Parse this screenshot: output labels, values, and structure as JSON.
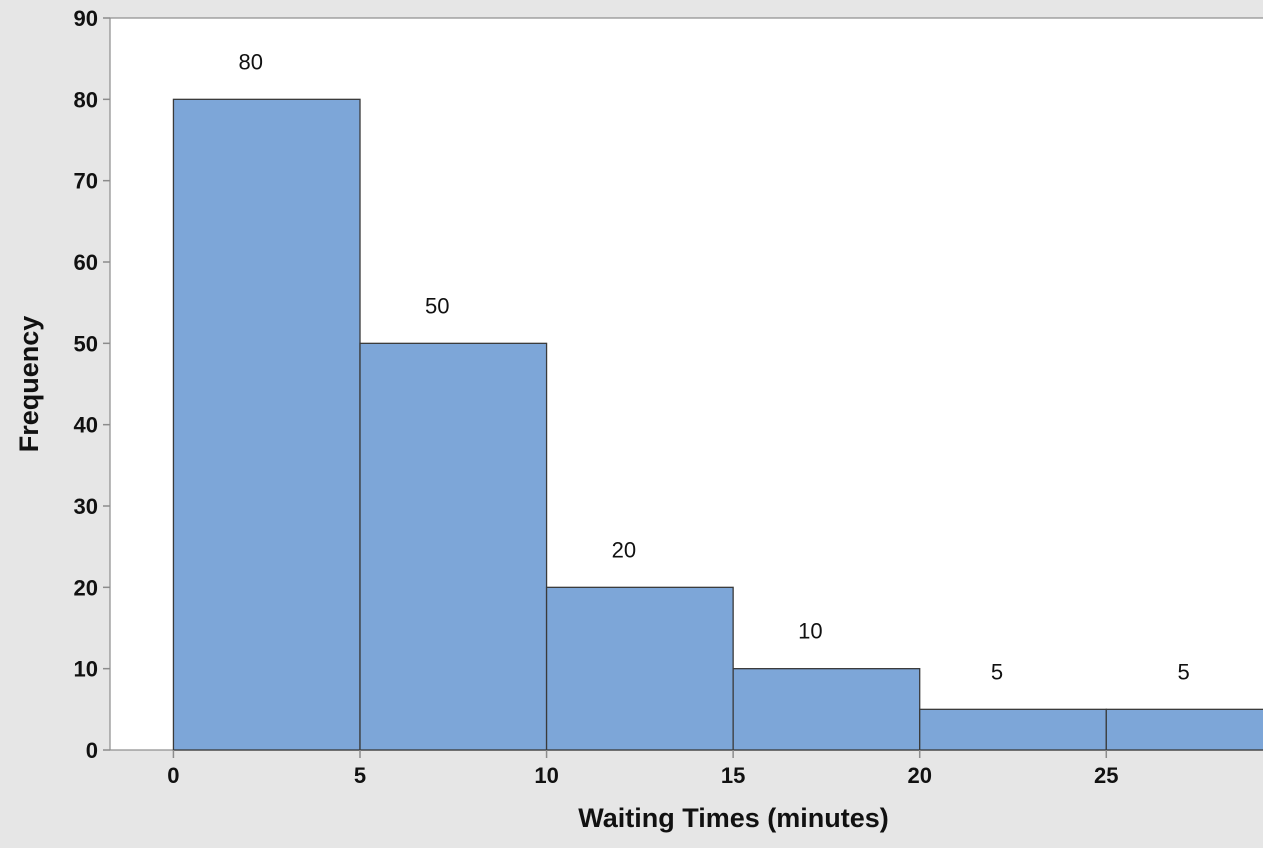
{
  "colors": {
    "page_background": "#e6e6e6",
    "plot_background": "#ffffff",
    "bar_fill": "#7da6d8",
    "bar_stroke": "#3a3a3a",
    "axis": "#8c8c8c",
    "text": "#111111"
  },
  "chart_data": {
    "type": "bar",
    "variant": "histogram",
    "title": "",
    "xlabel": "Waiting Times (minutes)",
    "ylabel": "Frequency",
    "bins": [
      {
        "start": 0,
        "end": 5,
        "value": 80
      },
      {
        "start": 5,
        "end": 10,
        "value": 50
      },
      {
        "start": 10,
        "end": 15,
        "value": 20
      },
      {
        "start": 15,
        "end": 20,
        "value": 10
      },
      {
        "start": 20,
        "end": 25,
        "value": 5
      },
      {
        "start": 25,
        "end": 30,
        "value": 5
      }
    ],
    "data_labels": [
      "80",
      "50",
      "20",
      "10",
      "5",
      "5"
    ],
    "x_ticks": [
      0,
      5,
      10,
      15,
      20,
      25
    ],
    "y_ticks": [
      0,
      10,
      20,
      30,
      40,
      50,
      60,
      70,
      80,
      90
    ],
    "xlim": [
      -1.7,
      29.2
    ],
    "ylim": [
      0,
      90
    ],
    "grid": false,
    "legend": "none"
  }
}
